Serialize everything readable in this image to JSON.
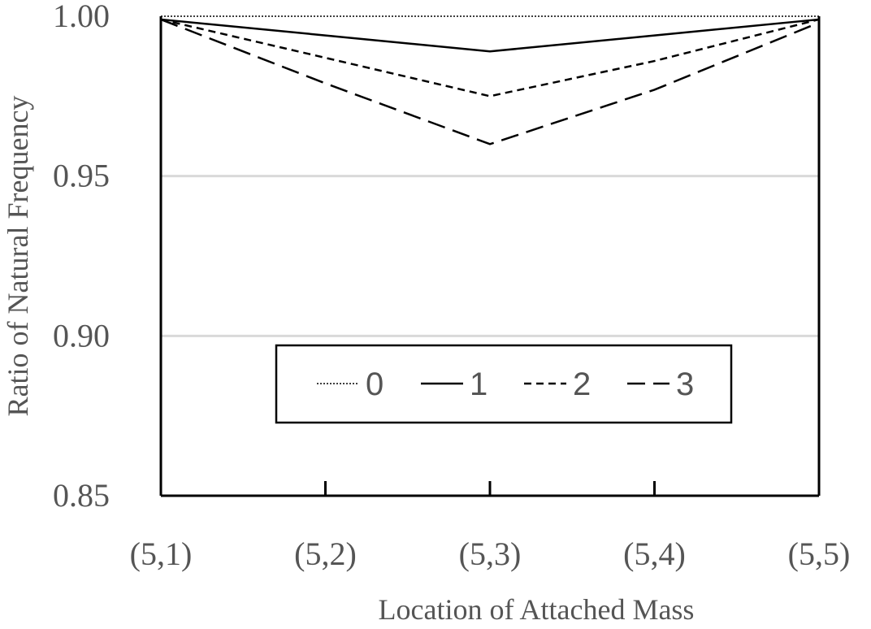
{
  "chart_data": {
    "type": "line",
    "title": "",
    "xlabel": "Location of Attached Mass",
    "ylabel": "Ratio of Natural Frequency",
    "categories": [
      "(5,1)",
      "(5,2)",
      "(5,3)",
      "(5,4)",
      "(5,5)"
    ],
    "ylim": [
      0.85,
      1.0
    ],
    "yticks": [
      "0.85",
      "0.90",
      "0.95",
      "1.00"
    ],
    "ytick_values": [
      0.85,
      0.9,
      0.95,
      1.0
    ],
    "grid": true,
    "legend_position": "center-bottom",
    "series": [
      {
        "name": "0",
        "style": "dotted",
        "values": [
          1.0,
          1.0,
          1.0,
          1.0,
          1.0
        ]
      },
      {
        "name": "1",
        "style": "solid",
        "values": [
          0.999,
          0.994,
          0.989,
          0.994,
          0.999
        ]
      },
      {
        "name": "2",
        "style": "short-dash",
        "values": [
          0.999,
          0.987,
          0.975,
          0.986,
          0.999
        ]
      },
      {
        "name": "3",
        "style": "long-dash",
        "values": [
          0.999,
          0.979,
          0.96,
          0.977,
          0.998
        ]
      }
    ],
    "colors": {
      "line": "#000000",
      "grid": "#d9d9d9",
      "text": "#555555"
    }
  }
}
